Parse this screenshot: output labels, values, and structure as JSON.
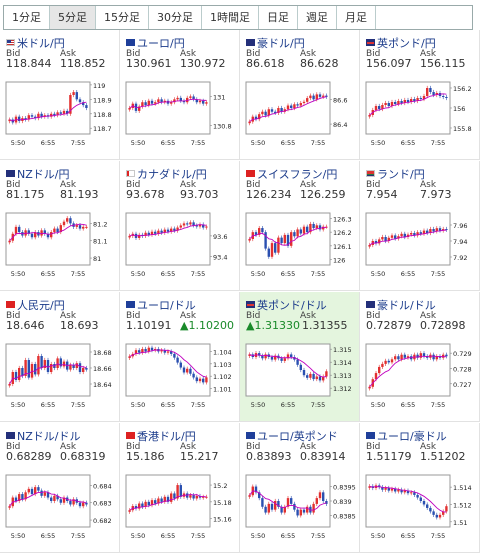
{
  "tabs": [
    {
      "label": "1分足",
      "active": false
    },
    {
      "label": "5分足",
      "active": true
    },
    {
      "label": "15分足",
      "active": false
    },
    {
      "label": "30分足",
      "active": false
    },
    {
      "label": "1時間足",
      "active": false
    },
    {
      "label": "日足",
      "active": false
    },
    {
      "label": "週足",
      "active": false
    },
    {
      "label": "月足",
      "active": false
    }
  ],
  "bid_label": "Bid",
  "ask_label": "Ask",
  "colors": {
    "up_candle": "#e23030",
    "down_candle": "#2a4fb0",
    "ma_line": "#c000c0",
    "highlight": "#e4f5de",
    "up_quote": "#1a8a2a"
  },
  "pairs": [
    {
      "name": "米ドル/円",
      "flag": "us",
      "bid": "118.844",
      "ask": "118.852",
      "chart_data": {
        "type": "candlestick",
        "x_ticks": [
          "5:50",
          "6:55",
          "7:55"
        ],
        "y_ticks": [
          "119",
          "118.9",
          "118.8",
          "118.7"
        ],
        "ylim": [
          118.66,
          119.02
        ],
        "closes": [
          118.76,
          118.74,
          118.78,
          118.75,
          118.77,
          118.76,
          118.79,
          118.78,
          118.77,
          118.8,
          118.78,
          118.79,
          118.78,
          118.8,
          118.79,
          118.81,
          118.8,
          118.82,
          118.8,
          118.93,
          118.95,
          118.9,
          118.88,
          118.86,
          118.84
        ]
      }
    },
    {
      "name": "ユーロ/円",
      "flag": "eu",
      "bid": "130.961",
      "ask": "130.972",
      "chart_data": {
        "type": "candlestick",
        "x_ticks": [
          "5:50",
          "6:55",
          "7:55"
        ],
        "y_ticks": [
          "131",
          "130.8"
        ],
        "ylim": [
          130.74,
          131.1
        ],
        "closes": [
          130.92,
          130.95,
          130.9,
          130.93,
          130.96,
          130.94,
          130.97,
          130.95,
          130.96,
          130.98,
          130.96,
          130.97,
          130.95,
          130.96,
          130.98,
          130.99,
          130.97,
          130.96,
          130.99,
          131.0,
          130.98,
          130.96,
          130.97,
          130.95,
          130.96
        ]
      }
    },
    {
      "name": "豪ドル/円",
      "flag": "au",
      "bid": "86.618",
      "ask": "86.628",
      "chart_data": {
        "type": "candlestick",
        "x_ticks": [
          "5:50",
          "6:55",
          "7:55"
        ],
        "y_ticks": [
          "86.6",
          "86.4"
        ],
        "ylim": [
          86.32,
          86.74
        ],
        "closes": [
          86.42,
          86.46,
          86.44,
          86.48,
          86.5,
          86.47,
          86.52,
          86.5,
          86.49,
          86.53,
          86.5,
          86.52,
          86.55,
          86.53,
          86.56,
          86.55,
          86.57,
          86.58,
          86.61,
          86.63,
          86.6,
          86.64,
          86.62,
          86.63,
          86.62
        ]
      }
    },
    {
      "name": "英ポンド/円",
      "flag": "gb",
      "bid": "156.097",
      "ask": "156.115",
      "chart_data": {
        "type": "candlestick",
        "x_ticks": [
          "5:50",
          "6:55",
          "7:55"
        ],
        "y_ticks": [
          "156.2",
          "156",
          "155.8"
        ],
        "ylim": [
          155.74,
          156.26
        ],
        "closes": [
          155.93,
          155.98,
          156.02,
          155.99,
          156.03,
          156.05,
          156.02,
          156.06,
          156.04,
          156.07,
          156.05,
          156.08,
          156.06,
          156.09,
          156.07,
          156.1,
          156.09,
          156.12,
          156.2,
          156.16,
          156.13,
          156.15,
          156.12,
          156.11,
          156.1
        ]
      }
    },
    {
      "name": "NZドル/円",
      "flag": "nz",
      "bid": "81.175",
      "ask": "81.193",
      "chart_data": {
        "type": "candlestick",
        "x_ticks": [
          "5:50",
          "6:55",
          "7:55"
        ],
        "y_ticks": [
          "81.2",
          "81.1",
          "81"
        ],
        "ylim": [
          80.96,
          81.26
        ],
        "closes": [
          81.1,
          81.14,
          81.18,
          81.15,
          81.13,
          81.16,
          81.14,
          81.12,
          81.15,
          81.13,
          81.16,
          81.14,
          81.12,
          81.15,
          81.17,
          81.15,
          81.19,
          81.21,
          81.23,
          81.2,
          81.18,
          81.19,
          81.17,
          81.18,
          81.18
        ]
      }
    },
    {
      "name": "カナダドル/円",
      "flag": "ca",
      "bid": "93.678",
      "ask": "93.703",
      "chart_data": {
        "type": "candlestick",
        "x_ticks": [
          "5:50",
          "6:55",
          "7:55"
        ],
        "y_ticks": [
          "93.6",
          "93.4"
        ],
        "ylim": [
          93.32,
          93.82
        ],
        "closes": [
          93.6,
          93.62,
          93.58,
          93.61,
          93.6,
          93.63,
          93.61,
          93.64,
          93.62,
          93.65,
          93.63,
          93.66,
          93.64,
          93.67,
          93.65,
          93.68,
          93.7,
          93.72,
          93.71,
          93.73,
          93.7,
          93.69,
          93.71,
          93.68,
          93.69
        ]
      }
    },
    {
      "name": "スイスフラン/円",
      "flag": "ch",
      "bid": "126.234",
      "ask": "126.259",
      "chart_data": {
        "type": "candlestick",
        "x_ticks": [
          "5:50",
          "6:55",
          "7:55"
        ],
        "y_ticks": [
          "126.3",
          "126.2",
          "126.1",
          "126"
        ],
        "ylim": [
          125.96,
          126.34
        ],
        "closes": [
          126.15,
          126.2,
          126.18,
          126.23,
          126.2,
          126.08,
          126.02,
          126.12,
          126.05,
          126.16,
          126.12,
          126.18,
          126.1,
          126.2,
          126.17,
          126.22,
          126.19,
          126.24,
          126.2,
          126.26,
          126.23,
          126.25,
          126.22,
          126.24,
          126.24
        ]
      }
    },
    {
      "name": "ランド/円",
      "flag": "za",
      "bid": "7.954",
      "ask": "7.973",
      "chart_data": {
        "type": "candlestick",
        "x_ticks": [
          "5:50",
          "6:55",
          "7:55"
        ],
        "y_ticks": [
          "7.96",
          "7.94",
          "7.92"
        ],
        "ylim": [
          7.91,
          7.975
        ],
        "closes": [
          7.935,
          7.94,
          7.937,
          7.942,
          7.945,
          7.94,
          7.944,
          7.947,
          7.943,
          7.946,
          7.949,
          7.945,
          7.948,
          7.95,
          7.947,
          7.951,
          7.949,
          7.953,
          7.95,
          7.955,
          7.952,
          7.956,
          7.953,
          7.955,
          7.954
        ]
      }
    },
    {
      "name": "人民元/円",
      "flag": "cn",
      "bid": "18.646",
      "ask": "18.693",
      "chart_data": {
        "type": "candlestick",
        "x_ticks": [
          "5:50",
          "6:55",
          "7:55"
        ],
        "y_ticks": [
          "18.68",
          "18.66",
          "18.64"
        ],
        "ylim": [
          18.625,
          18.69
        ],
        "closes": [
          18.64,
          18.655,
          18.645,
          18.66,
          18.65,
          18.67,
          18.648,
          18.665,
          18.652,
          18.675,
          18.66,
          18.67,
          18.655,
          18.665,
          18.66,
          18.672,
          18.662,
          18.668,
          18.658,
          18.664,
          18.66,
          18.666,
          18.655,
          18.66,
          18.658
        ]
      }
    },
    {
      "name": "ユーロ/ドル",
      "flag": "eu",
      "bid": "1.10191",
      "ask": "1.10200",
      "ask_up": true,
      "chart_data": {
        "type": "candlestick",
        "x_ticks": [
          "5:50",
          "6:55",
          "7:55"
        ],
        "y_ticks": [
          "1.104",
          "1.103",
          "1.102",
          "1.101"
        ],
        "ylim": [
          1.1004,
          1.1046
        ],
        "closes": [
          1.1036,
          1.1038,
          1.1041,
          1.1039,
          1.1042,
          1.104,
          1.1043,
          1.1041,
          1.1042,
          1.104,
          1.1041,
          1.1039,
          1.104,
          1.1038,
          1.1035,
          1.1031,
          1.1027,
          1.1023,
          1.1026,
          1.1022,
          1.1019,
          1.1016,
          1.1018,
          1.1015,
          1.1019
        ]
      }
    },
    {
      "name": "英ポンド/ドル",
      "flag": "gb",
      "bid": "1.31330",
      "ask": "1.31355",
      "bid_up": true,
      "highlight": true,
      "chart_data": {
        "type": "candlestick",
        "x_ticks": [
          "5:50",
          "6:55",
          "7:55"
        ],
        "y_ticks": [
          "1.315",
          "1.314",
          "1.313",
          "1.312"
        ],
        "ylim": [
          1.3114,
          1.3154
        ],
        "closes": [
          1.3146,
          1.3144,
          1.3147,
          1.3145,
          1.3143,
          1.3146,
          1.3144,
          1.3142,
          1.3145,
          1.3143,
          1.3141,
          1.3143,
          1.3146,
          1.3144,
          1.3142,
          1.3138,
          1.3134,
          1.313,
          1.3128,
          1.3131,
          1.3127,
          1.3129,
          1.3126,
          1.3129,
          1.3133
        ]
      }
    },
    {
      "name": "豪ドル/ドル",
      "flag": "au",
      "bid": "0.72879",
      "ask": "0.72898",
      "chart_data": {
        "type": "candlestick",
        "x_ticks": [
          "5:50",
          "6:55",
          "7:55"
        ],
        "y_ticks": [
          "0.729",
          "0.728",
          "0.727"
        ],
        "ylim": [
          0.7262,
          0.7296
        ],
        "closes": [
          0.7268,
          0.7273,
          0.7277,
          0.7281,
          0.7283,
          0.7285,
          0.7284,
          0.7286,
          0.7288,
          0.7286,
          0.7289,
          0.7287,
          0.7288,
          0.7286,
          0.7289,
          0.7287,
          0.729,
          0.7288,
          0.7287,
          0.7289,
          0.7286,
          0.7288,
          0.7287,
          0.7289,
          0.7288
        ]
      }
    },
    {
      "name": "NZドル/ドル",
      "flag": "nz",
      "bid": "0.68289",
      "ask": "0.68319",
      "chart_data": {
        "type": "candlestick",
        "x_ticks": [
          "5:50",
          "6:55",
          "7:55"
        ],
        "y_ticks": [
          "0.684",
          "0.683",
          "0.682"
        ],
        "ylim": [
          0.6816,
          0.6846
        ],
        "closes": [
          0.6828,
          0.6833,
          0.6831,
          0.6835,
          0.6832,
          0.6836,
          0.6838,
          0.6835,
          0.6839,
          0.6837,
          0.6834,
          0.6836,
          0.6833,
          0.6831,
          0.6834,
          0.6832,
          0.683,
          0.6833,
          0.6831,
          0.6829,
          0.6832,
          0.683,
          0.6828,
          0.683,
          0.6829
        ]
      }
    },
    {
      "name": "香港ドル/円",
      "flag": "hk",
      "bid": "15.186",
      "ask": "15.217",
      "chart_data": {
        "type": "candlestick",
        "x_ticks": [
          "5:50",
          "6:55",
          "7:55"
        ],
        "y_ticks": [
          "15.2",
          "15.18",
          "15.16"
        ],
        "ylim": [
          15.15,
          15.212
        ],
        "closes": [
          15.17,
          15.175,
          15.172,
          15.178,
          15.174,
          15.18,
          15.176,
          15.182,
          15.178,
          15.184,
          15.18,
          15.186,
          15.18,
          15.19,
          15.184,
          15.2,
          15.186,
          15.19,
          15.185,
          15.188,
          15.184,
          15.187,
          15.185,
          15.186,
          15.186
        ]
      }
    },
    {
      "name": "ユーロ/英ポンド",
      "flag": "eu",
      "bid": "0.83893",
      "ask": "0.83914",
      "chart_data": {
        "type": "candlestick",
        "x_ticks": [
          "5:50",
          "6:55",
          "7:55"
        ],
        "y_ticks": [
          "0.8395",
          "0.839",
          "0.8385"
        ],
        "ylim": [
          0.8381,
          0.8399
        ],
        "closes": [
          0.8392,
          0.8395,
          0.8393,
          0.8391,
          0.8388,
          0.8386,
          0.8389,
          0.8387,
          0.839,
          0.8388,
          0.8386,
          0.8388,
          0.8391,
          0.8389,
          0.8387,
          0.8385,
          0.8387,
          0.8386,
          0.8388,
          0.8386,
          0.8389,
          0.8391,
          0.8393,
          0.839,
          0.8389
        ]
      }
    },
    {
      "name": "ユーロ/豪ドル",
      "flag": "eu",
      "bid": "1.51179",
      "ask": "1.51202",
      "chart_data": {
        "type": "candlestick",
        "x_ticks": [
          "5:50",
          "6:55",
          "7:55"
        ],
        "y_ticks": [
          "1.514",
          "1.512",
          "1.51"
        ],
        "ylim": [
          1.5094,
          1.5154
        ],
        "closes": [
          1.5141,
          1.5139,
          1.5142,
          1.514,
          1.5137,
          1.5139,
          1.5136,
          1.5138,
          1.5135,
          1.5137,
          1.5134,
          1.5136,
          1.5133,
          1.5134,
          1.5131,
          1.5128,
          1.5124,
          1.512,
          1.5116,
          1.5112,
          1.5108,
          1.5105,
          1.5108,
          1.5112,
          1.5118
        ]
      }
    }
  ]
}
